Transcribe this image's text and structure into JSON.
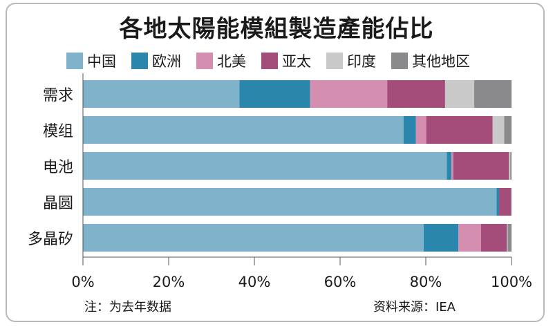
{
  "chart_data": {
    "type": "bar",
    "orientation": "horizontal",
    "stacked": true,
    "title": "各地太陽能模組製造產能佔比",
    "categories": [
      "需求",
      "模组",
      "电池",
      "晶圆",
      "多晶矽"
    ],
    "series": [
      {
        "name": "中国",
        "color": "#7fb3cc",
        "values": [
          36.5,
          74.8,
          84.9,
          96.5,
          79.5
        ]
      },
      {
        "name": "欧洲",
        "color": "#2a86ac",
        "values": [
          16.5,
          2.9,
          1.1,
          0.6,
          8.1
        ]
      },
      {
        "name": "北美",
        "color": "#d48fb0",
        "values": [
          18.0,
          2.4,
          0.4,
          0.0,
          5.3
        ]
      },
      {
        "name": "亚太",
        "color": "#a54d7a",
        "values": [
          13.5,
          15.5,
          13.0,
          2.8,
          6.0
        ]
      },
      {
        "name": "印度",
        "color": "#c9c9c9",
        "values": [
          6.8,
          2.7,
          0.3,
          0.0,
          0.2
        ]
      },
      {
        "name": "其他地区",
        "color": "#8a8a8c",
        "values": [
          8.7,
          1.7,
          0.3,
          0.1,
          0.9
        ]
      }
    ],
    "x_ticks": [
      "0%",
      "20%",
      "40%",
      "60%",
      "80%",
      "100%"
    ],
    "x_tick_values": [
      0,
      20,
      40,
      60,
      80,
      100
    ],
    "xlim": [
      0,
      100
    ],
    "legend_position": "top",
    "note": "注：为去年数据",
    "source": "资料来源：IEA"
  }
}
